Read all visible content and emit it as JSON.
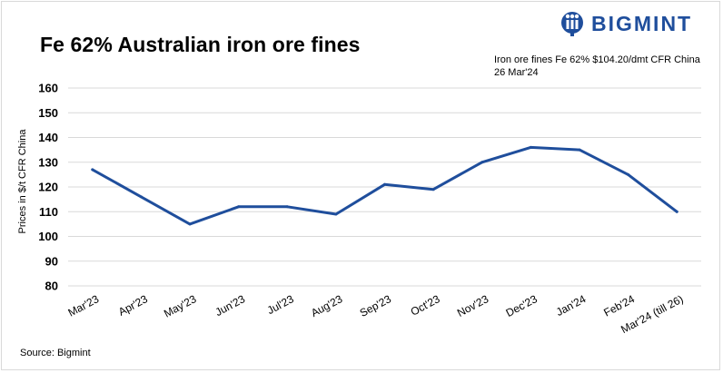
{
  "brand": {
    "name": "BIGMINT",
    "icon": "bigmint-logo-icon",
    "color": "#1f4e9c"
  },
  "note": "Iron ore fines Fe 62% $104.20/dmt CFR China 26 Mar'24",
  "source": "Source: Bigmint",
  "chart_data": {
    "type": "line",
    "title": "Fe 62% Australian iron ore fines",
    "xlabel": "",
    "ylabel": "Prices in $/t CFR China",
    "ylim": [
      80,
      160
    ],
    "yticks": [
      80,
      90,
      100,
      110,
      120,
      130,
      140,
      150,
      160
    ],
    "grid": true,
    "legend": "none",
    "categories": [
      "Mar'23",
      "Apr'23",
      "May'23",
      "Jun'23",
      "Jul'23",
      "Aug'23",
      "Sep'23",
      "Oct'23",
      "Nov'23",
      "Dec'23",
      "Jan'24",
      "Feb'24",
      "Mar'24 (till 26)"
    ],
    "series": [
      {
        "color": "#1f4e9c",
        "values": [
          127,
          116,
          105,
          112,
          112,
          109,
          121,
          119,
          130,
          136,
          135,
          125,
          110
        ]
      }
    ]
  }
}
